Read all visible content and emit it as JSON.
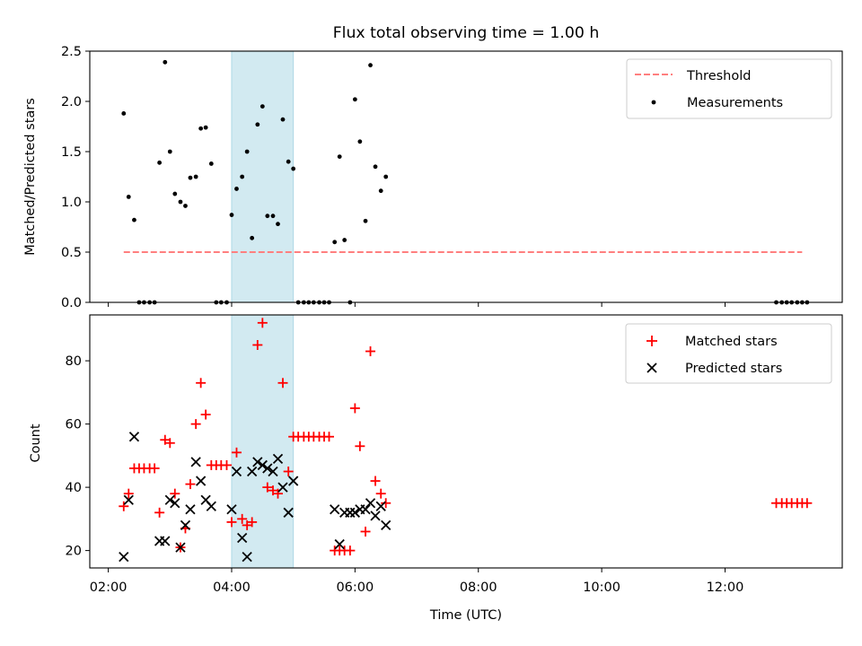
{
  "colors": {
    "threshold": "#ff7f7f",
    "measurements": "#000000",
    "matched": "#ff0000",
    "predicted": "#000000",
    "highlight": "#add8e6"
  },
  "chart_data": [
    {
      "type": "scatter",
      "title": "Flux total observing time = 1.00 h",
      "xlabel": "",
      "ylabel": "Matched/Predicted stars",
      "x_unit": "hours (UTC)",
      "xlim": [
        1.7,
        13.9
      ],
      "ylim": [
        0,
        2.5
      ],
      "yticks": [
        0.0,
        0.5,
        1.0,
        1.5,
        2.0,
        2.5
      ],
      "ytick_labels": [
        "0.0",
        "0.5",
        "1.0",
        "1.5",
        "2.0",
        "2.5"
      ],
      "xticks": [
        2,
        4,
        6,
        8,
        10,
        12
      ],
      "highlight_span": [
        4.0,
        5.0
      ],
      "legend": {
        "position": "upper right",
        "entries": [
          "Threshold",
          "Measurements"
        ]
      },
      "threshold": {
        "name": "Threshold",
        "value": 0.5,
        "x_range": [
          2.25,
          13.25
        ]
      },
      "series": [
        {
          "name": "Measurements",
          "x": [
            2.25,
            2.33,
            2.42,
            2.5,
            2.58,
            2.67,
            2.75,
            2.83,
            2.92,
            3.0,
            3.08,
            3.17,
            3.25,
            3.33,
            3.42,
            3.5,
            3.58,
            3.67,
            3.75,
            3.83,
            3.92,
            4.0,
            4.08,
            4.17,
            4.25,
            4.33,
            4.42,
            4.5,
            4.58,
            4.67,
            4.75,
            4.83,
            4.92,
            5.0,
            5.08,
            5.17,
            5.25,
            5.33,
            5.42,
            5.5,
            5.58,
            5.67,
            5.75,
            5.83,
            5.92,
            6.0,
            6.08,
            6.17,
            6.25,
            6.33,
            6.42,
            6.5,
            12.83,
            12.92,
            13.0,
            13.08,
            13.17,
            13.25,
            13.33
          ],
          "values": [
            1.88,
            1.05,
            0.82,
            0.0,
            0.0,
            0.0,
            0.0,
            1.39,
            2.39,
            1.5,
            1.08,
            1.0,
            0.96,
            1.24,
            1.25,
            1.73,
            1.74,
            1.38,
            0.0,
            0.0,
            0.0,
            0.87,
            1.13,
            1.25,
            1.5,
            0.64,
            1.77,
            1.95,
            0.86,
            0.86,
            0.78,
            1.82,
            1.4,
            1.33,
            0.0,
            0.0,
            0.0,
            0.0,
            0.0,
            0.0,
            0.0,
            0.6,
            1.45,
            0.62,
            0.0,
            2.02,
            1.6,
            0.81,
            2.36,
            1.35,
            1.11,
            1.25,
            0.0,
            0.0,
            0.0,
            0.0,
            0.0,
            0.0,
            0.0
          ]
        }
      ]
    },
    {
      "type": "scatter",
      "title": "",
      "xlabel": "Time (UTC)",
      "ylabel": "Count",
      "x_unit": "hours (UTC)",
      "xlim": [
        1.7,
        13.9
      ],
      "ylim": [
        14.5,
        94.5
      ],
      "yticks": [
        20,
        40,
        60,
        80
      ],
      "ytick_labels": [
        "20",
        "40",
        "60",
        "80"
      ],
      "xticks": [
        2,
        4,
        6,
        8,
        10,
        12
      ],
      "xtick_labels": [
        "02:00",
        "04:00",
        "06:00",
        "08:00",
        "10:00",
        "12:00"
      ],
      "highlight_span": [
        4.0,
        5.0
      ],
      "legend": {
        "position": "upper right",
        "entries": [
          "Matched stars",
          "Predicted stars"
        ]
      },
      "series": [
        {
          "name": "Matched stars",
          "marker": "+",
          "x": [
            2.25,
            2.33,
            2.42,
            2.5,
            2.58,
            2.67,
            2.75,
            2.83,
            2.92,
            3.0,
            3.08,
            3.17,
            3.25,
            3.33,
            3.42,
            3.5,
            3.58,
            3.67,
            3.75,
            3.83,
            3.92,
            4.0,
            4.08,
            4.17,
            4.25,
            4.33,
            4.42,
            4.5,
            4.58,
            4.67,
            4.75,
            4.83,
            4.92,
            5.0,
            5.08,
            5.17,
            5.25,
            5.33,
            5.42,
            5.5,
            5.58,
            5.67,
            5.75,
            5.83,
            5.92,
            6.0,
            6.08,
            6.17,
            6.25,
            6.33,
            6.42,
            6.5,
            12.83,
            12.92,
            13.0,
            13.08,
            13.17,
            13.25,
            13.33
          ],
          "values": [
            34,
            38,
            46,
            46,
            46,
            46,
            46,
            32,
            55,
            54,
            38,
            21,
            27,
            41,
            60,
            73,
            63,
            47,
            47,
            47,
            47,
            29,
            51,
            30,
            28,
            29,
            85,
            92,
            40,
            39,
            38,
            73,
            45,
            56,
            56,
            56,
            56,
            56,
            56,
            56,
            56,
            20,
            20,
            20,
            20,
            65,
            53,
            26,
            83,
            42,
            38,
            35,
            35,
            35,
            35,
            35,
            35,
            35,
            35
          ]
        },
        {
          "name": "Predicted stars",
          "marker": "x",
          "x": [
            2.25,
            2.33,
            2.42,
            2.83,
            2.92,
            3.0,
            3.08,
            3.17,
            3.25,
            3.33,
            3.42,
            3.5,
            3.58,
            3.67,
            4.0,
            4.08,
            4.17,
            4.25,
            4.33,
            4.42,
            4.5,
            4.58,
            4.67,
            4.75,
            4.83,
            4.92,
            5.0,
            5.67,
            5.75,
            5.83,
            5.92,
            6.0,
            6.08,
            6.17,
            6.25,
            6.33,
            6.42,
            6.5
          ],
          "values": [
            18,
            36,
            56,
            23,
            23,
            36,
            35,
            21,
            28,
            33,
            48,
            42,
            36,
            34,
            33,
            45,
            24,
            18,
            45,
            48,
            47,
            46,
            45,
            49,
            40,
            32,
            42,
            33,
            22,
            32,
            32,
            32,
            33,
            33,
            35,
            31,
            34,
            28
          ]
        }
      ]
    }
  ]
}
